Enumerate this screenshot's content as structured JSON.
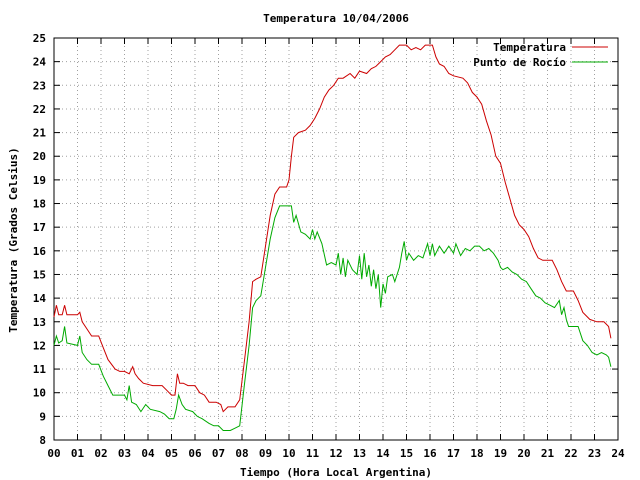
{
  "chart_data": {
    "type": "line",
    "title": "Temperatura 10/04/2006",
    "xlabel": "Tiempo (Hora Local Argentina)",
    "ylabel": "Temperatura (Grados Celsius)",
    "xlim": [
      0,
      24
    ],
    "ylim": [
      8,
      25
    ],
    "x_ticks": [
      "00",
      "01",
      "02",
      "03",
      "04",
      "05",
      "06",
      "07",
      "08",
      "09",
      "10",
      "11",
      "12",
      "13",
      "14",
      "15",
      "16",
      "17",
      "18",
      "19",
      "20",
      "21",
      "22",
      "23",
      "24"
    ],
    "y_ticks": [
      "8",
      "9",
      "10",
      "11",
      "12",
      "13",
      "14",
      "15",
      "16",
      "17",
      "18",
      "19",
      "20",
      "21",
      "22",
      "23",
      "24",
      "25"
    ],
    "grid": true,
    "legend_position": "top-right",
    "series": [
      {
        "name": "Temperatura",
        "color": "#cc0000",
        "points": [
          [
            0.0,
            13.2
          ],
          [
            0.1,
            13.7
          ],
          [
            0.2,
            13.3
          ],
          [
            0.35,
            13.3
          ],
          [
            0.45,
            13.7
          ],
          [
            0.55,
            13.3
          ],
          [
            1.0,
            13.3
          ],
          [
            1.1,
            13.4
          ],
          [
            1.2,
            13.0
          ],
          [
            1.4,
            12.7
          ],
          [
            1.6,
            12.4
          ],
          [
            1.9,
            12.4
          ],
          [
            2.1,
            11.9
          ],
          [
            2.3,
            11.4
          ],
          [
            2.6,
            11.0
          ],
          [
            2.8,
            10.9
          ],
          [
            3.0,
            10.9
          ],
          [
            3.2,
            10.8
          ],
          [
            3.35,
            11.1
          ],
          [
            3.45,
            10.8
          ],
          [
            3.6,
            10.6
          ],
          [
            3.8,
            10.4
          ],
          [
            4.2,
            10.3
          ],
          [
            4.6,
            10.3
          ],
          [
            4.8,
            10.1
          ],
          [
            5.0,
            9.9
          ],
          [
            5.15,
            9.9
          ],
          [
            5.25,
            10.8
          ],
          [
            5.35,
            10.4
          ],
          [
            5.5,
            10.4
          ],
          [
            5.7,
            10.3
          ],
          [
            6.0,
            10.3
          ],
          [
            6.2,
            10.0
          ],
          [
            6.4,
            9.9
          ],
          [
            6.6,
            9.6
          ],
          [
            6.9,
            9.6
          ],
          [
            7.1,
            9.5
          ],
          [
            7.2,
            9.2
          ],
          [
            7.4,
            9.4
          ],
          [
            7.7,
            9.4
          ],
          [
            7.9,
            9.7
          ],
          [
            8.1,
            11.3
          ],
          [
            8.3,
            13.0
          ],
          [
            8.45,
            14.7
          ],
          [
            8.6,
            14.8
          ],
          [
            8.8,
            14.9
          ],
          [
            9.0,
            16.2
          ],
          [
            9.2,
            17.5
          ],
          [
            9.4,
            18.4
          ],
          [
            9.6,
            18.7
          ],
          [
            9.9,
            18.7
          ],
          [
            10.0,
            19.0
          ],
          [
            10.1,
            20.0
          ],
          [
            10.2,
            20.8
          ],
          [
            10.4,
            21.0
          ],
          [
            10.7,
            21.1
          ],
          [
            10.9,
            21.3
          ],
          [
            11.1,
            21.6
          ],
          [
            11.3,
            22.0
          ],
          [
            11.5,
            22.5
          ],
          [
            11.7,
            22.8
          ],
          [
            11.9,
            23.0
          ],
          [
            12.1,
            23.3
          ],
          [
            12.3,
            23.3
          ],
          [
            12.6,
            23.5
          ],
          [
            12.8,
            23.3
          ],
          [
            13.0,
            23.6
          ],
          [
            13.3,
            23.5
          ],
          [
            13.5,
            23.7
          ],
          [
            13.7,
            23.8
          ],
          [
            13.9,
            24.0
          ],
          [
            14.1,
            24.2
          ],
          [
            14.3,
            24.3
          ],
          [
            14.5,
            24.5
          ],
          [
            14.7,
            24.7
          ],
          [
            15.0,
            24.7
          ],
          [
            15.2,
            24.5
          ],
          [
            15.4,
            24.6
          ],
          [
            15.6,
            24.5
          ],
          [
            15.8,
            24.7
          ],
          [
            16.1,
            24.7
          ],
          [
            16.25,
            24.2
          ],
          [
            16.4,
            23.9
          ],
          [
            16.6,
            23.8
          ],
          [
            16.8,
            23.5
          ],
          [
            17.0,
            23.4
          ],
          [
            17.4,
            23.3
          ],
          [
            17.6,
            23.1
          ],
          [
            17.8,
            22.7
          ],
          [
            18.0,
            22.5
          ],
          [
            18.2,
            22.2
          ],
          [
            18.4,
            21.5
          ],
          [
            18.6,
            20.9
          ],
          [
            18.8,
            20.0
          ],
          [
            19.0,
            19.7
          ],
          [
            19.2,
            18.9
          ],
          [
            19.4,
            18.2
          ],
          [
            19.6,
            17.5
          ],
          [
            19.8,
            17.1
          ],
          [
            20.0,
            16.9
          ],
          [
            20.2,
            16.6
          ],
          [
            20.4,
            16.1
          ],
          [
            20.6,
            15.7
          ],
          [
            20.8,
            15.6
          ],
          [
            21.2,
            15.6
          ],
          [
            21.4,
            15.2
          ],
          [
            21.6,
            14.7
          ],
          [
            21.8,
            14.3
          ],
          [
            22.1,
            14.3
          ],
          [
            22.3,
            13.9
          ],
          [
            22.5,
            13.4
          ],
          [
            22.8,
            13.1
          ],
          [
            23.1,
            13.0
          ],
          [
            23.4,
            13.0
          ],
          [
            23.6,
            12.8
          ],
          [
            23.7,
            12.3
          ]
        ]
      },
      {
        "name": "Punto de Rocío",
        "color": "#00aa00",
        "points": [
          [
            0.0,
            12.0
          ],
          [
            0.1,
            12.4
          ],
          [
            0.2,
            12.1
          ],
          [
            0.35,
            12.2
          ],
          [
            0.45,
            12.8
          ],
          [
            0.55,
            12.1
          ],
          [
            1.0,
            12.0
          ],
          [
            1.1,
            12.4
          ],
          [
            1.2,
            11.7
          ],
          [
            1.4,
            11.4
          ],
          [
            1.6,
            11.2
          ],
          [
            1.9,
            11.2
          ],
          [
            2.1,
            10.7
          ],
          [
            2.3,
            10.3
          ],
          [
            2.5,
            9.9
          ],
          [
            2.8,
            9.9
          ],
          [
            3.0,
            9.9
          ],
          [
            3.1,
            9.7
          ],
          [
            3.2,
            10.3
          ],
          [
            3.3,
            9.6
          ],
          [
            3.5,
            9.5
          ],
          [
            3.7,
            9.2
          ],
          [
            3.9,
            9.5
          ],
          [
            4.1,
            9.3
          ],
          [
            4.5,
            9.2
          ],
          [
            4.7,
            9.1
          ],
          [
            4.9,
            8.9
          ],
          [
            5.1,
            8.9
          ],
          [
            5.2,
            9.3
          ],
          [
            5.3,
            9.9
          ],
          [
            5.45,
            9.5
          ],
          [
            5.6,
            9.3
          ],
          [
            5.9,
            9.2
          ],
          [
            6.1,
            9.0
          ],
          [
            6.3,
            8.9
          ],
          [
            6.6,
            8.7
          ],
          [
            6.8,
            8.6
          ],
          [
            7.0,
            8.6
          ],
          [
            7.2,
            8.4
          ],
          [
            7.5,
            8.4
          ],
          [
            7.7,
            8.5
          ],
          [
            7.9,
            8.6
          ],
          [
            8.1,
            10.3
          ],
          [
            8.3,
            12.0
          ],
          [
            8.45,
            13.6
          ],
          [
            8.6,
            13.9
          ],
          [
            8.8,
            14.1
          ],
          [
            9.0,
            15.3
          ],
          [
            9.2,
            16.5
          ],
          [
            9.4,
            17.4
          ],
          [
            9.6,
            17.9
          ],
          [
            9.9,
            17.9
          ],
          [
            10.1,
            17.9
          ],
          [
            10.2,
            17.2
          ],
          [
            10.3,
            17.5
          ],
          [
            10.5,
            16.8
          ],
          [
            10.7,
            16.7
          ],
          [
            10.9,
            16.5
          ],
          [
            11.0,
            16.9
          ],
          [
            11.1,
            16.5
          ],
          [
            11.2,
            16.8
          ],
          [
            11.4,
            16.3
          ],
          [
            11.6,
            15.4
          ],
          [
            11.8,
            15.5
          ],
          [
            12.0,
            15.4
          ],
          [
            12.1,
            15.9
          ],
          [
            12.2,
            15.0
          ],
          [
            12.3,
            15.7
          ],
          [
            12.4,
            14.9
          ],
          [
            12.5,
            15.6
          ],
          [
            12.7,
            15.2
          ],
          [
            12.9,
            15.0
          ],
          [
            13.0,
            15.8
          ],
          [
            13.1,
            14.8
          ],
          [
            13.2,
            15.9
          ],
          [
            13.3,
            14.9
          ],
          [
            13.4,
            15.4
          ],
          [
            13.5,
            14.5
          ],
          [
            13.6,
            15.2
          ],
          [
            13.7,
            14.4
          ],
          [
            13.8,
            15.0
          ],
          [
            13.9,
            13.6
          ],
          [
            14.0,
            14.6
          ],
          [
            14.1,
            14.2
          ],
          [
            14.2,
            14.9
          ],
          [
            14.4,
            15.0
          ],
          [
            14.5,
            14.7
          ],
          [
            14.7,
            15.3
          ],
          [
            14.8,
            15.9
          ],
          [
            14.9,
            16.4
          ],
          [
            15.0,
            15.6
          ],
          [
            15.1,
            15.9
          ],
          [
            15.3,
            15.6
          ],
          [
            15.5,
            15.8
          ],
          [
            15.7,
            15.7
          ],
          [
            15.9,
            16.3
          ],
          [
            16.0,
            15.8
          ],
          [
            16.1,
            16.3
          ],
          [
            16.2,
            15.8
          ],
          [
            16.4,
            16.2
          ],
          [
            16.6,
            15.9
          ],
          [
            16.8,
            16.2
          ],
          [
            17.0,
            15.9
          ],
          [
            17.1,
            16.3
          ],
          [
            17.3,
            15.8
          ],
          [
            17.5,
            16.1
          ],
          [
            17.7,
            16.0
          ],
          [
            17.9,
            16.2
          ],
          [
            18.1,
            16.2
          ],
          [
            18.3,
            16.0
          ],
          [
            18.5,
            16.1
          ],
          [
            18.7,
            15.9
          ],
          [
            18.9,
            15.6
          ],
          [
            19.0,
            15.3
          ],
          [
            19.1,
            15.2
          ],
          [
            19.3,
            15.3
          ],
          [
            19.5,
            15.1
          ],
          [
            19.7,
            15.0
          ],
          [
            19.9,
            14.8
          ],
          [
            20.1,
            14.7
          ],
          [
            20.3,
            14.4
          ],
          [
            20.5,
            14.1
          ],
          [
            20.7,
            14.0
          ],
          [
            20.9,
            13.8
          ],
          [
            21.1,
            13.7
          ],
          [
            21.3,
            13.6
          ],
          [
            21.5,
            13.9
          ],
          [
            21.6,
            13.3
          ],
          [
            21.7,
            13.6
          ],
          [
            21.8,
            13.1
          ],
          [
            21.9,
            12.8
          ],
          [
            22.1,
            12.8
          ],
          [
            22.3,
            12.8
          ],
          [
            22.5,
            12.2
          ],
          [
            22.7,
            12.0
          ],
          [
            22.9,
            11.7
          ],
          [
            23.1,
            11.6
          ],
          [
            23.3,
            11.7
          ],
          [
            23.5,
            11.6
          ],
          [
            23.6,
            11.5
          ],
          [
            23.7,
            11.1
          ]
        ]
      }
    ]
  }
}
